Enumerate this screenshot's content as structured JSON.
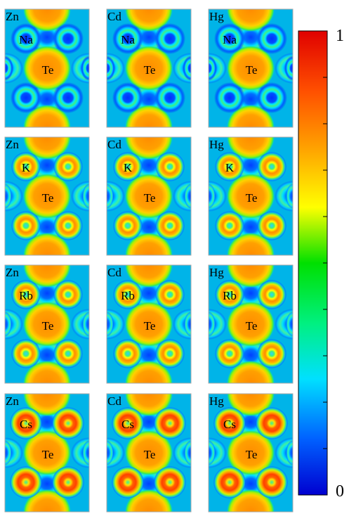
{
  "rows": [
    {
      "alkali": "Na",
      "panels": [
        {
          "metal": "Zn",
          "alkali_label": "Na",
          "center_label": "Te"
        },
        {
          "metal": "Cd",
          "alkali_label": "Na",
          "center_label": "Te"
        },
        {
          "metal": "Hg",
          "alkali_label": "Na",
          "center_label": "Te"
        }
      ]
    },
    {
      "alkali": "K",
      "panels": [
        {
          "metal": "Zn",
          "alkali_label": "K",
          "center_label": "Te"
        },
        {
          "metal": "Cd",
          "alkali_label": "K",
          "center_label": "Te"
        },
        {
          "metal": "Hg",
          "alkali_label": "K",
          "center_label": "Te"
        }
      ]
    },
    {
      "alkali": "Rb",
      "panels": [
        {
          "metal": "Zn",
          "alkali_label": "Rb",
          "center_label": "Te"
        },
        {
          "metal": "Cd",
          "alkali_label": "Rb",
          "center_label": "Te"
        },
        {
          "metal": "Hg",
          "alkali_label": "Rb",
          "center_label": "Te"
        }
      ]
    },
    {
      "alkali": "Cs",
      "panels": [
        {
          "metal": "Zn",
          "alkali_label": "Cs",
          "center_label": "Te"
        },
        {
          "metal": "Cd",
          "alkali_label": "Cs",
          "center_label": "Te"
        },
        {
          "metal": "Hg",
          "alkali_label": "Cs",
          "center_label": "Te"
        }
      ]
    }
  ],
  "colorbar": {
    "max_label": "1",
    "min_label": "0",
    "min_value": 0,
    "max_value": 1,
    "tick_count": 9,
    "gradient": [
      "#0000d0",
      "#0060ff",
      "#00e0ff",
      "#00f080",
      "#00e000",
      "#ffff00",
      "#ffa000",
      "#ff5000",
      "#e00000"
    ]
  }
}
